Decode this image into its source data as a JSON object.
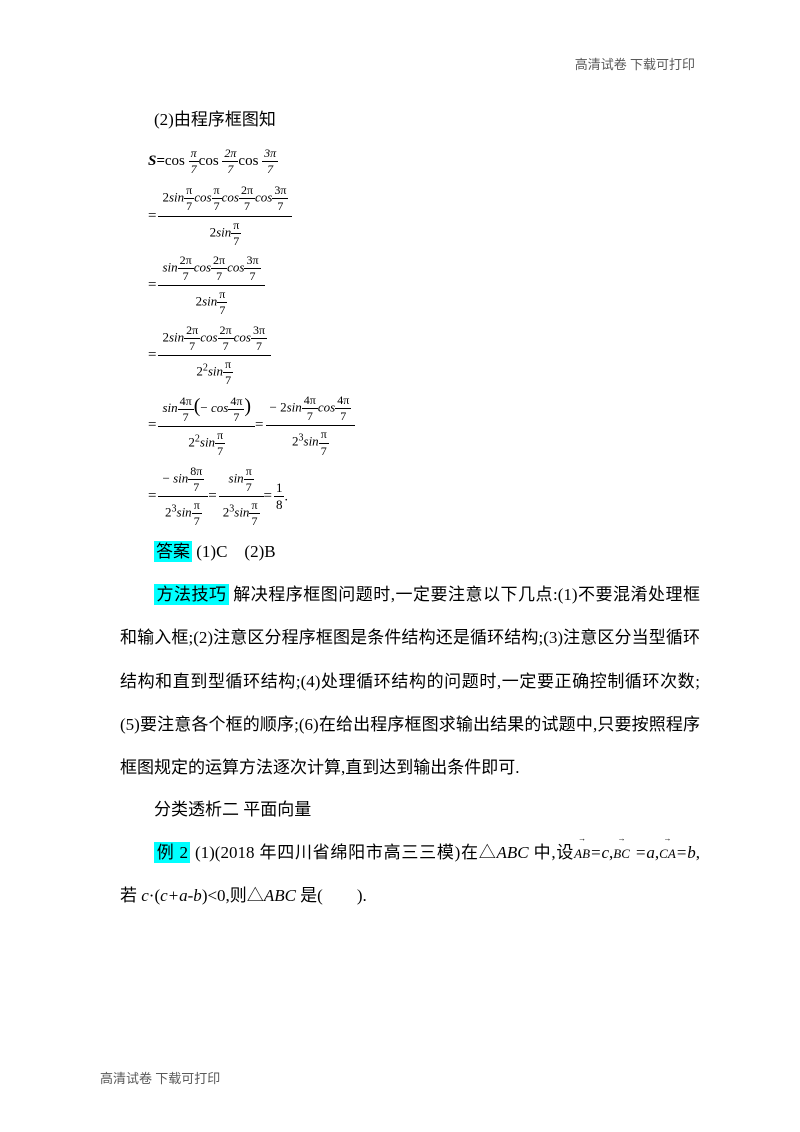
{
  "header": {
    "right": "高清试卷 下载可打印"
  },
  "footer": {
    "left": "高清试卷 下载可打印"
  },
  "p1": "(2)由程序框图知",
  "eq1_lead": "S=",
  "eq1_a": "cos ",
  "eq1_b": "cos ",
  "eq1_c": "cos ",
  "answer_label": "答案",
  "answer_text": " (1)C　(2)B",
  "method_label": "方法技巧",
  "method_text": " 解决程序框图问题时,一定要注意以下几点:(1)不要混淆处理框和输入框;(2)注意区分程序框图是条件结构还是循环结构;(3)注意区分当型循环结构和直到型循环结构;(4)处理循环结构的问题时,一定要正确控制循环次数;(5)要注意各个框的顺序;(6)在给出程序框图求输出结果的试题中,只要按照程序框图规定的运算方法逐次计算,直到达到输出条件即可.",
  "sec2_title": "分类透析二   平面向量",
  "ex2_label": "例 2",
  "ex2_text_a": " (1)(2018 年四川省绵阳市高三三模)在△",
  "ex2_ABC": "ABC",
  "ex2_text_b": " 中,设",
  "ex2_text_c": "=c",
  "ex2_text_d": "=a",
  "ex2_text_e": "=b",
  "ex2_text_f": ", 若 ",
  "ex2_text_g": "c",
  "ex2_text_h": "·(",
  "ex2_text_i": "c+a-b",
  "ex2_text_j": ")<0,则△",
  "ex2_text_k": " 是(　　).",
  "pi": "π",
  "seven": "7",
  "two": "2",
  "three": "3",
  "four": "4",
  "eight": "8"
}
